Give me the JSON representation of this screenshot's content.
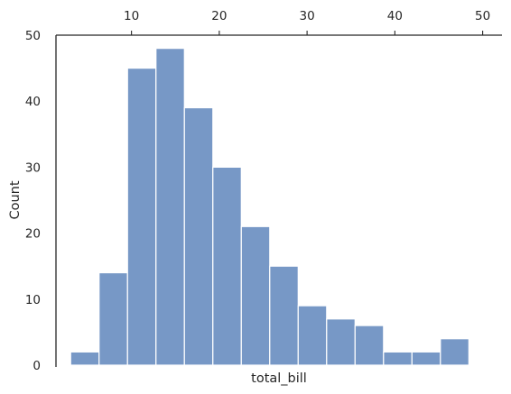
{
  "chart_data": {
    "type": "bar",
    "title": "",
    "xlabel": "total_bill",
    "ylabel": "Count",
    "x_axis_position": "top",
    "x_ticks": [
      10,
      20,
      30,
      40,
      50
    ],
    "y_ticks": [
      0,
      10,
      20,
      30,
      40,
      50
    ],
    "xlim": [
      1.4,
      52.2
    ],
    "ylim": [
      0,
      50
    ],
    "grid": false,
    "legend": "none",
    "bar_color": "#7798c6",
    "bins": [
      {
        "x0": 3.07,
        "x1": 6.31,
        "count": 2
      },
      {
        "x0": 6.31,
        "x1": 9.55,
        "count": 14
      },
      {
        "x0": 9.55,
        "x1": 12.79,
        "count": 45
      },
      {
        "x0": 12.79,
        "x1": 16.03,
        "count": 48
      },
      {
        "x0": 16.03,
        "x1": 19.27,
        "count": 39
      },
      {
        "x0": 19.27,
        "x1": 22.51,
        "count": 30
      },
      {
        "x0": 22.51,
        "x1": 25.75,
        "count": 21
      },
      {
        "x0": 25.75,
        "x1": 28.99,
        "count": 15
      },
      {
        "x0": 28.99,
        "x1": 32.23,
        "count": 9
      },
      {
        "x0": 32.23,
        "x1": 35.47,
        "count": 7
      },
      {
        "x0": 35.47,
        "x1": 38.71,
        "count": 6
      },
      {
        "x0": 38.71,
        "x1": 41.95,
        "count": 2
      },
      {
        "x0": 41.95,
        "x1": 45.19,
        "count": 2
      },
      {
        "x0": 45.19,
        "x1": 48.43,
        "count": 4
      }
    ]
  }
}
